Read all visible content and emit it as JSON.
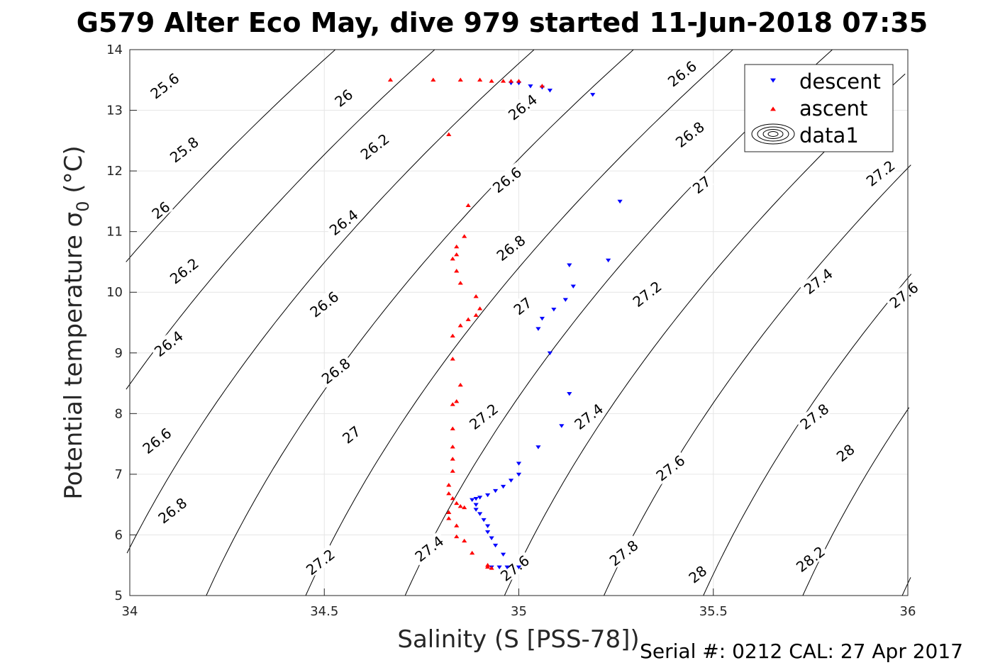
{
  "chart_data": {
    "type": "scatter",
    "title": "G579 Alter Eco May, dive 979 started 11-Jun-2018 07:35",
    "xlabel": "Salinity (S [PSS-78])",
    "ylabel_main": "Potential temperature ",
    "ylabel_sigma": "σ",
    "ylabel_sub": "0",
    "ylabel_unit": " (°C)",
    "xlim": [
      34,
      36
    ],
    "ylim": [
      5,
      14
    ],
    "x_ticks": [
      "34",
      "34.5",
      "35",
      "35.5",
      "36"
    ],
    "y_ticks": [
      "5",
      "6",
      "7",
      "8",
      "9",
      "10",
      "11",
      "12",
      "13",
      "14"
    ],
    "grid": true,
    "legend_position": "top-right",
    "legend": [
      {
        "label": "descent",
        "marker": "triangle-down",
        "color": "#0000ff"
      },
      {
        "label": "ascent",
        "marker": "triangle-up",
        "color": "#ff0000"
      },
      {
        "label": "data1",
        "marker": "contour",
        "color": "#000000"
      }
    ],
    "contour_levels": [
      25.6,
      25.8,
      26,
      26.2,
      26.4,
      26.6,
      26.8,
      27,
      27.2,
      27.4,
      27.6,
      27.8,
      28,
      28.2
    ],
    "contour_labels": [
      {
        "text": "25.6",
        "s": 34.09,
        "t": 13.4
      },
      {
        "text": "25.8",
        "s": 34.14,
        "t": 12.35
      },
      {
        "text": "26",
        "s": 34.08,
        "t": 11.35
      },
      {
        "text": "26.2",
        "s": 34.14,
        "t": 10.35
      },
      {
        "text": "26.4",
        "s": 34.1,
        "t": 9.15
      },
      {
        "text": "26.6",
        "s": 34.07,
        "t": 7.55
      },
      {
        "text": "26.8",
        "s": 34.11,
        "t": 6.4
      },
      {
        "text": "26",
        "s": 34.55,
        "t": 13.2
      },
      {
        "text": "26.2",
        "s": 34.63,
        "t": 12.4
      },
      {
        "text": "26.4",
        "s": 34.55,
        "t": 11.15
      },
      {
        "text": "26.6",
        "s": 34.5,
        "t": 9.8
      },
      {
        "text": "26.8",
        "s": 34.53,
        "t": 8.7
      },
      {
        "text": "27",
        "s": 34.57,
        "t": 7.65
      },
      {
        "text": "27.2",
        "s": 34.49,
        "t": 5.55
      },
      {
        "text": "26.4",
        "s": 35.01,
        "t": 13.05
      },
      {
        "text": "26.6",
        "s": 34.97,
        "t": 11.85
      },
      {
        "text": "26.8",
        "s": 34.98,
        "t": 10.73
      },
      {
        "text": "27",
        "s": 35.01,
        "t": 9.77
      },
      {
        "text": "27.2",
        "s": 34.91,
        "t": 7.95
      },
      {
        "text": "27.4",
        "s": 34.77,
        "t": 5.77
      },
      {
        "text": "27.6",
        "s": 34.99,
        "t": 5.45
      },
      {
        "text": "26.6",
        "s": 35.42,
        "t": 13.6
      },
      {
        "text": "26.8",
        "s": 35.44,
        "t": 12.6
      },
      {
        "text": "27",
        "s": 35.47,
        "t": 11.77
      },
      {
        "text": "27.2",
        "s": 35.33,
        "t": 9.97
      },
      {
        "text": "27.4",
        "s": 35.18,
        "t": 7.95
      },
      {
        "text": "27.6",
        "s": 35.39,
        "t": 7.1
      },
      {
        "text": "27.8",
        "s": 35.27,
        "t": 5.7
      },
      {
        "text": "28",
        "s": 35.46,
        "t": 5.35
      },
      {
        "text": "27.2",
        "s": 35.93,
        "t": 11.96
      },
      {
        "text": "27.4",
        "s": 35.77,
        "t": 10.18
      },
      {
        "text": "27.6",
        "s": 35.99,
        "t": 9.95
      },
      {
        "text": "27.8",
        "s": 35.76,
        "t": 7.95
      },
      {
        "text": "28",
        "s": 35.84,
        "t": 7.35
      },
      {
        "text": "28.2",
        "s": 35.75,
        "t": 5.6
      }
    ],
    "series": [
      {
        "name": "descent",
        "points": [
          [
            34.98,
            13.45
          ],
          [
            35.0,
            13.45
          ],
          [
            35.03,
            13.4
          ],
          [
            35.06,
            13.38
          ],
          [
            35.08,
            13.33
          ],
          [
            35.19,
            13.26
          ],
          [
            35.26,
            11.5
          ],
          [
            35.23,
            10.53
          ],
          [
            35.13,
            10.45
          ],
          [
            35.14,
            10.1
          ],
          [
            35.12,
            9.88
          ],
          [
            35.09,
            9.72
          ],
          [
            35.06,
            9.57
          ],
          [
            35.05,
            9.4
          ],
          [
            35.08,
            9.0
          ],
          [
            35.13,
            8.33
          ],
          [
            35.11,
            7.8
          ],
          [
            35.05,
            7.45
          ],
          [
            35.0,
            7.18
          ],
          [
            35.0,
            7.0
          ],
          [
            34.98,
            6.9
          ],
          [
            34.96,
            6.8
          ],
          [
            34.94,
            6.73
          ],
          [
            34.92,
            6.66
          ],
          [
            34.9,
            6.62
          ],
          [
            34.89,
            6.6
          ],
          [
            34.88,
            6.58
          ],
          [
            34.89,
            6.5
          ],
          [
            34.89,
            6.42
          ],
          [
            34.9,
            6.35
          ],
          [
            34.91,
            6.25
          ],
          [
            34.92,
            6.15
          ],
          [
            34.92,
            6.05
          ],
          [
            34.93,
            5.95
          ],
          [
            34.94,
            5.83
          ],
          [
            34.96,
            5.68
          ],
          [
            34.93,
            5.47
          ],
          [
            34.95,
            5.47
          ],
          [
            34.97,
            5.47
          ],
          [
            35.0,
            5.47
          ]
        ]
      },
      {
        "name": "ascent",
        "points": [
          [
            34.67,
            13.5
          ],
          [
            34.78,
            13.5
          ],
          [
            34.85,
            13.5
          ],
          [
            34.9,
            13.5
          ],
          [
            34.93,
            13.48
          ],
          [
            34.96,
            13.48
          ],
          [
            34.98,
            13.48
          ],
          [
            35.0,
            13.48
          ],
          [
            35.06,
            13.4
          ],
          [
            34.82,
            12.6
          ],
          [
            34.87,
            11.43
          ],
          [
            34.86,
            10.92
          ],
          [
            34.84,
            10.75
          ],
          [
            34.84,
            10.62
          ],
          [
            34.83,
            10.55
          ],
          [
            34.84,
            10.35
          ],
          [
            34.85,
            10.15
          ],
          [
            34.89,
            9.93
          ],
          [
            34.9,
            9.73
          ],
          [
            34.89,
            9.62
          ],
          [
            34.87,
            9.55
          ],
          [
            34.85,
            9.45
          ],
          [
            34.83,
            9.28
          ],
          [
            34.83,
            8.9
          ],
          [
            34.85,
            8.47
          ],
          [
            34.84,
            8.2
          ],
          [
            34.83,
            8.15
          ],
          [
            34.83,
            7.75
          ],
          [
            34.83,
            7.45
          ],
          [
            34.83,
            7.25
          ],
          [
            34.83,
            7.05
          ],
          [
            34.82,
            6.82
          ],
          [
            34.82,
            6.68
          ],
          [
            34.83,
            6.6
          ],
          [
            34.84,
            6.52
          ],
          [
            34.85,
            6.47
          ],
          [
            34.86,
            6.45
          ],
          [
            34.82,
            6.37
          ],
          [
            34.82,
            6.27
          ],
          [
            34.84,
            6.15
          ],
          [
            34.84,
            5.97
          ],
          [
            34.86,
            5.9
          ],
          [
            34.88,
            5.7
          ],
          [
            34.92,
            5.5
          ],
          [
            34.93,
            5.45
          ],
          [
            34.92,
            5.47
          ]
        ]
      }
    ]
  },
  "footer": {
    "serial_label": "Serial #: 0212  CAL: 27 Apr 2017"
  },
  "colors": {
    "descent": "#0000ff",
    "ascent": "#ff0000",
    "grid": "#e6e6e6",
    "axis": "#262626"
  }
}
